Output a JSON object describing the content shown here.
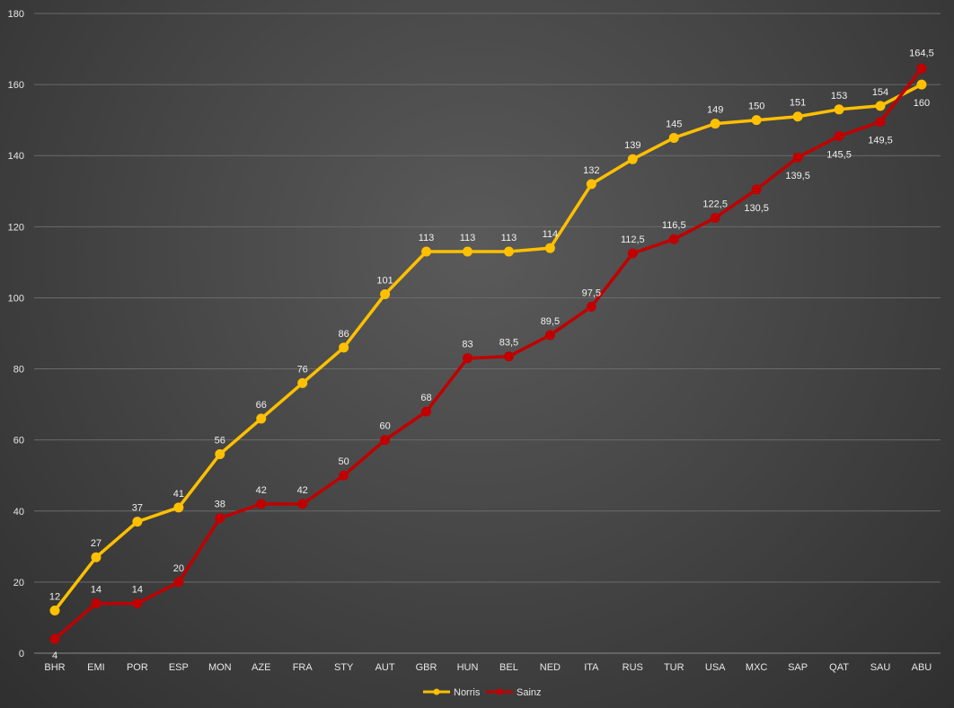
{
  "chart_data": {
    "type": "line",
    "title": "",
    "xlabel": "",
    "ylabel": "",
    "ylim": [
      0,
      180
    ],
    "yticks": [
      0,
      20,
      40,
      60,
      80,
      100,
      120,
      140,
      160,
      180
    ],
    "grid": true,
    "legend_position": "bottom",
    "categories": [
      "BHR",
      "EMI",
      "POR",
      "ESP",
      "MON",
      "AZE",
      "FRA",
      "STY",
      "AUT",
      "GBR",
      "HUN",
      "BEL",
      "NED",
      "ITA",
      "RUS",
      "TUR",
      "USA",
      "MXC",
      "SAP",
      "QAT",
      "SAU",
      "ABU"
    ],
    "series": [
      {
        "name": "Norris",
        "color": "#FFC000",
        "values": [
          12,
          27,
          37,
          41,
          56,
          66,
          76,
          86,
          101,
          113,
          113,
          113,
          114,
          132,
          139,
          145,
          149,
          150,
          151,
          153,
          154,
          160
        ],
        "labels": [
          "12",
          "27",
          "37",
          "41",
          "56",
          "66",
          "76",
          "86",
          "101",
          "113",
          "113",
          "113",
          "114",
          "132",
          "139",
          "145",
          "149",
          "150",
          "151",
          "153",
          "154",
          "160"
        ]
      },
      {
        "name": "Sainz",
        "color": "#C00000",
        "values": [
          4,
          14,
          14,
          20,
          38,
          42,
          42,
          50,
          60,
          68,
          83,
          83.5,
          89.5,
          97.5,
          112.5,
          116.5,
          122.5,
          130.5,
          139.5,
          145.5,
          149.5,
          164.5
        ],
        "labels": [
          "4",
          "14",
          "14",
          "20",
          "38",
          "42",
          "42",
          "50",
          "60",
          "68",
          "83",
          "83,5",
          "89,5",
          "97,5",
          "112,5",
          "116,5",
          "122,5",
          "130,5",
          "139,5",
          "145,5",
          "149,5",
          "164,5"
        ]
      }
    ]
  }
}
